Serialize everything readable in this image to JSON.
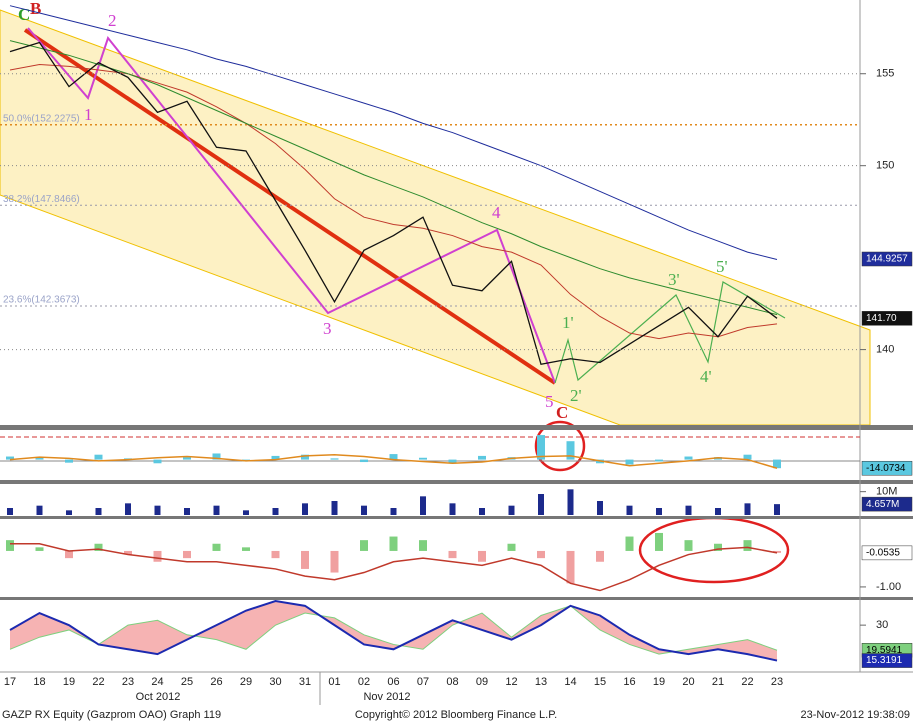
{
  "chart_data": [
    {
      "type": "line",
      "categories": [
        "17",
        "18",
        "19",
        "22",
        "23",
        "24",
        "25",
        "26",
        "29",
        "30",
        "31",
        "01",
        "02",
        "06",
        "07",
        "08",
        "09",
        "12",
        "13",
        "14",
        "15",
        "16",
        "19",
        "20",
        "21",
        "22",
        "23"
      ],
      "month_labels": [
        "Oct 2012",
        "Nov 2012"
      ],
      "ylim": [
        135.9,
        158.9
      ],
      "yticks": [
        140,
        150,
        155
      ],
      "grid": true,
      "series": [
        {
          "color": "#111111",
          "values": [
            156.2,
            156.7,
            154.3,
            155.6,
            154.8,
            152.9,
            153.5,
            151,
            150.8,
            148.1,
            145.4,
            142.6,
            145.4,
            146.2,
            147.2,
            143.5,
            143.2,
            144.8,
            139.2,
            139.5,
            139.3,
            140.3,
            141.3,
            142.3,
            140.7,
            142.9,
            141.7
          ]
        },
        {
          "color": "#1f2d9c",
          "values": [
            158.7,
            158.3,
            157.9,
            157.5,
            157.1,
            156.7,
            156.3,
            155.8,
            155.4,
            154.9,
            154.4,
            153.9,
            153.4,
            152.9,
            152.3,
            151.8,
            151.2,
            150.6,
            150,
            149.3,
            148.6,
            147.9,
            147.2,
            146.5,
            145.9,
            145.3,
            144.9
          ]
        },
        {
          "color": "#2e8b2e",
          "values": [
            156.8,
            156.4,
            156,
            155.5,
            155,
            154.4,
            153.7,
            153,
            152.3,
            151.6,
            150.9,
            150.2,
            149.5,
            148.9,
            148.3,
            147.6,
            146.9,
            146.3,
            145.6,
            145,
            144.4,
            143.9,
            143.5,
            143.1,
            142.7,
            142.3,
            141.9
          ]
        },
        {
          "color": "#c0392b",
          "values": [
            155.2,
            155.5,
            155.4,
            155.2,
            155,
            154.5,
            154,
            153.2,
            152.3,
            151.2,
            149.8,
            148.2,
            147.2,
            146.8,
            146.6,
            146.2,
            145.6,
            145.3,
            144.6,
            143,
            141.8,
            140.9,
            140.6,
            140.9,
            140.7,
            141.2,
            141.4
          ]
        }
      ],
      "fib_levels": [
        {
          "value": 152.2275,
          "label": "50.0%(152.2275)"
        },
        {
          "value": 147.8466,
          "label": "38.2%(147.8466)"
        },
        {
          "value": 142.3673,
          "label": "23.6%(142.3673)"
        }
      ],
      "end_labels": [
        {
          "value": 144.9257,
          "label": "144.9257",
          "color": "#1f2d9c"
        },
        {
          "value": 141.7,
          "label": "141.70",
          "color": "#111111"
        }
      ],
      "annotations": [
        "C",
        "B",
        "1",
        "2",
        "3",
        "4",
        "5",
        "C",
        "1'",
        "2'",
        "3'",
        "4'",
        "5'"
      ]
    },
    {
      "type": "oscillator",
      "ylim": [
        -30,
        45
      ],
      "bars": {
        "colors": [
          "#5bc8e0",
          "#5bc8e0"
        ],
        "values": [
          5,
          3,
          -5,
          8,
          2,
          -6,
          4,
          10,
          -3,
          6,
          8,
          2,
          -4,
          9,
          3,
          -5,
          6,
          4,
          40,
          30,
          -6,
          -8,
          -3,
          5,
          4,
          8,
          -14
        ]
      },
      "series": [
        {
          "color": "#e08a1e",
          "values": [
            0,
            4,
            2,
            -2,
            0,
            3,
            5,
            2,
            -2,
            0,
            6,
            8,
            5,
            0,
            -3,
            -6,
            -4,
            2,
            5,
            6,
            -2,
            -10,
            -6,
            -2,
            3,
            0,
            -14.0734
          ]
        }
      ],
      "end_labels": [
        {
          "value": -14.0734,
          "label": "-14.0734",
          "color": "#5bc8e0"
        }
      ]
    },
    {
      "type": "bar",
      "ylim": [
        0,
        12
      ],
      "yticks": [
        {
          "value": 10,
          "label": "10M"
        }
      ],
      "color": "#1c2a8c",
      "values": [
        3,
        4,
        2,
        3,
        5,
        4,
        3,
        4,
        2,
        3,
        5,
        6,
        4,
        3,
        8,
        5,
        3,
        4,
        9,
        11,
        6,
        4,
        3,
        4,
        3,
        5,
        4.657
      ],
      "end_labels": [
        {
          "value": 4.657,
          "label": "4.657M",
          "color": "#1c2a8c"
        }
      ]
    },
    {
      "type": "oscillator",
      "ylim": [
        -1.28,
        0.86
      ],
      "yticks": [
        {
          "value": -1,
          "label": "-1.00"
        }
      ],
      "bars": {
        "colors": [
          "#7ed07e",
          "#f0a0a0"
        ],
        "values": [
          0.3,
          0.1,
          -0.2,
          0.2,
          -0.1,
          -0.3,
          -0.2,
          0.2,
          0.1,
          -0.2,
          -0.5,
          -0.6,
          0.3,
          0.4,
          0.3,
          -0.2,
          -0.3,
          0.2,
          -0.2,
          -0.9,
          -0.3,
          0.4,
          0.5,
          0.3,
          0.2,
          0.3,
          -0.0535
        ]
      },
      "series": [
        {
          "color": "#c0392b",
          "values": [
            0.2,
            0.2,
            0,
            0.05,
            -0.1,
            -0.2,
            -0.3,
            -0.3,
            -0.4,
            -0.5,
            -0.7,
            -0.8,
            -0.6,
            -0.3,
            -0.2,
            -0.3,
            -0.4,
            -0.2,
            -0.4,
            -0.9,
            -1.1,
            -0.8,
            -0.4,
            -0.1,
            0.05,
            0.1,
            -0.0535
          ]
        }
      ],
      "end_labels": [
        {
          "value": -0.0535,
          "label": "-0.0535",
          "color": "#ffffff"
        }
      ]
    },
    {
      "type": "area",
      "ylim": [
        11,
        40
      ],
      "yticks": [
        30
      ],
      "series": [
        {
          "color": "#7ed07e",
          "values": [
            20,
            25,
            28,
            22,
            30,
            32,
            26,
            24,
            20,
            30,
            35,
            33,
            26,
            22,
            20,
            30,
            35,
            25,
            34,
            38,
            28,
            22,
            18,
            20,
            22,
            24,
            19.5941
          ]
        },
        {
          "color": "#1c2ab0",
          "values": [
            28,
            35,
            30,
            22,
            20,
            18,
            24,
            30,
            36,
            40,
            38,
            30,
            22,
            20,
            26,
            32,
            28,
            24,
            30,
            38,
            34,
            26,
            20,
            18,
            20,
            18,
            15.3191
          ]
        }
      ],
      "end_labels": [
        {
          "value": 19.5941,
          "label": "19.5941",
          "color": "#7ed07e"
        },
        {
          "value": 15.3191,
          "label": "15.3191",
          "color": "#1c2ab0"
        }
      ]
    }
  ],
  "footer": {
    "left": "GAZP RX Equity (Gazprom OAO) Graph 119",
    "center": "Copyright© 2012 Bloomberg Finance L.P.",
    "right": "23-Nov-2012 19:38:09"
  }
}
